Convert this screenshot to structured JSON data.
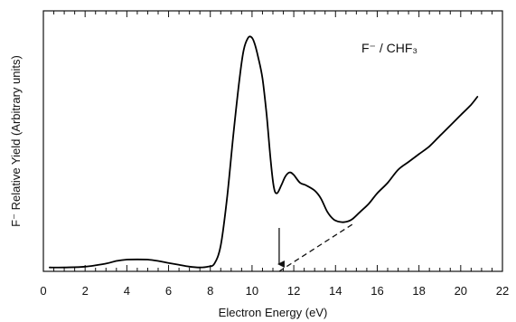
{
  "chart_data": {
    "type": "line",
    "title": "",
    "xlabel": "Electron Energy (eV)",
    "ylabel": "F⁻ Relative Yield (Arbitrary units)",
    "xlim": [
      0,
      22
    ],
    "ylim": [
      0,
      1
    ],
    "xticks": [
      0,
      2,
      4,
      6,
      8,
      10,
      12,
      14,
      16,
      18,
      20,
      22
    ],
    "x_minor_step": 0.5,
    "grid": false,
    "legend": "none",
    "annotation_text": "F⁻ / CHF₃",
    "arrow_at_x": 11.3,
    "dashed_extrapolation": {
      "x": [
        11.3,
        14.8
      ],
      "y": [
        0.0,
        0.18
      ]
    },
    "series": [
      {
        "color": "#000000",
        "x": [
          0.3,
          1.0,
          2.0,
          3.0,
          3.5,
          4.0,
          4.5,
          5.0,
          5.5,
          6.0,
          6.5,
          7.0,
          7.5,
          7.9,
          8.2,
          8.5,
          8.8,
          9.1,
          9.4,
          9.6,
          9.8,
          9.95,
          10.1,
          10.3,
          10.5,
          10.7,
          10.9,
          11.05,
          11.2,
          11.4,
          11.6,
          11.8,
          12.0,
          12.3,
          12.6,
          13.0,
          13.3,
          13.6,
          13.9,
          14.2,
          14.5,
          14.8,
          15.2,
          15.6,
          16.0,
          16.5,
          17.0,
          17.5,
          18.0,
          18.5,
          19.0,
          19.5,
          20.0,
          20.5,
          20.8
        ],
        "y": [
          0.015,
          0.015,
          0.018,
          0.03,
          0.04,
          0.045,
          0.046,
          0.045,
          0.04,
          0.032,
          0.025,
          0.018,
          0.015,
          0.018,
          0.03,
          0.1,
          0.28,
          0.52,
          0.74,
          0.85,
          0.895,
          0.9,
          0.88,
          0.82,
          0.74,
          0.6,
          0.42,
          0.32,
          0.3,
          0.33,
          0.365,
          0.38,
          0.37,
          0.34,
          0.33,
          0.31,
          0.28,
          0.23,
          0.2,
          0.19,
          0.19,
          0.2,
          0.23,
          0.26,
          0.3,
          0.34,
          0.39,
          0.42,
          0.45,
          0.48,
          0.52,
          0.56,
          0.6,
          0.64,
          0.67
        ]
      }
    ]
  }
}
